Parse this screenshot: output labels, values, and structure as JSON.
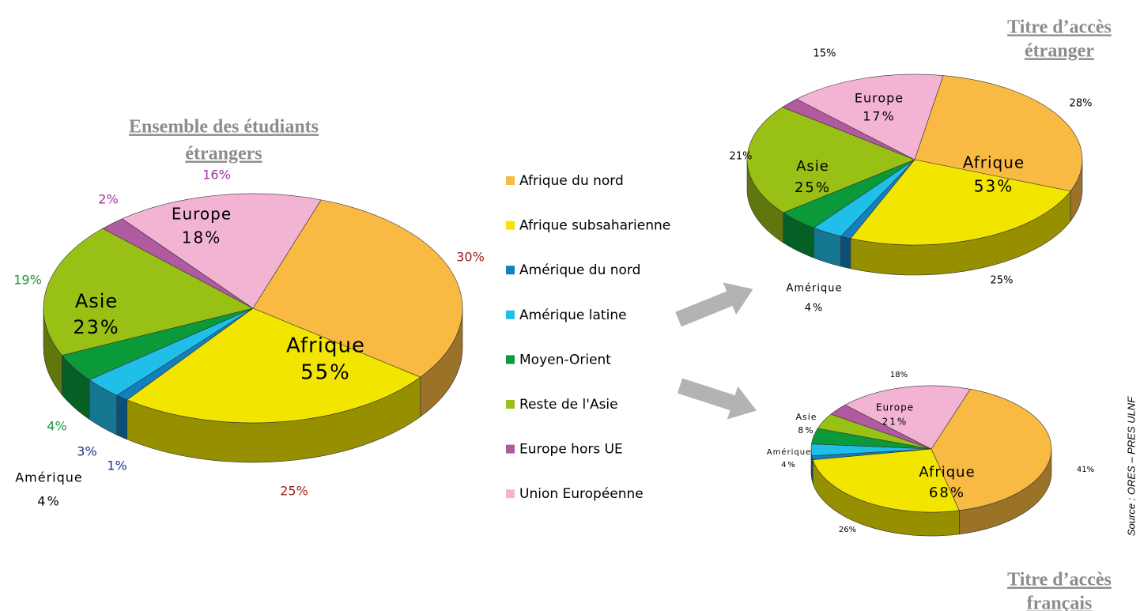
{
  "legend": {
    "categories": [
      "Afrique du nord",
      "Afrique subsaharienne",
      "Amérique du nord",
      "Amérique latine",
      "Moyen-Orient",
      "Reste de l'Asie",
      "Europe hors UE",
      "Union Européenne"
    ],
    "colors": [
      "#f8ba42",
      "#f2e600",
      "#1080c0",
      "#20bfea",
      "#0a9a3a",
      "#99c014",
      "#b05aa0",
      "#f3b3d3"
    ]
  },
  "source": "Source : ORES – PRES ULNF",
  "chart_data": [
    {
      "type": "pie",
      "title": [
        "Ensemble des  étudiants",
        "étrangers"
      ],
      "values": [
        30,
        25,
        1,
        3,
        4,
        19,
        2,
        16
      ],
      "value_labels": [
        "30%",
        "25%",
        "1%",
        "3%",
        "4%",
        "19%",
        "2%",
        "16%"
      ],
      "label_colors": [
        "#9b1c1c",
        "#9b1c1c",
        "#1f2f8a",
        "#1f2f8a",
        "#139a3a",
        "#139a3a",
        "#a0379a",
        "#a0379a"
      ],
      "groups": {
        "names": [
          "Afrique",
          "Asie",
          "Europe",
          "Amérique"
        ],
        "values": [
          55,
          23,
          18,
          4
        ],
        "value_labels": [
          "55%",
          "23%",
          "18%",
          "4%"
        ]
      }
    },
    {
      "type": "pie",
      "title": [
        "Titre d’accès",
        "étranger"
      ],
      "values": [
        28,
        25,
        1,
        3,
        4,
        21,
        2,
        15
      ],
      "value_labels": [
        "28%",
        "25%",
        null,
        null,
        null,
        "21%",
        null,
        "15%"
      ],
      "groups": {
        "names": [
          "Afrique",
          "Asie",
          "Europe",
          "Amérique"
        ],
        "values": [
          53,
          25,
          17,
          4
        ],
        "value_labels": [
          "53%",
          "25%",
          "17%",
          "4%"
        ]
      }
    },
    {
      "type": "pie",
      "title": [
        "Titre d’accès",
        "français"
      ],
      "values": [
        41,
        26,
        1,
        3,
        4,
        4,
        3,
        18
      ],
      "value_labels": [
        "41%",
        "26%",
        null,
        null,
        null,
        null,
        null,
        "18%"
      ],
      "groups": {
        "names": [
          "Afrique",
          "Asie",
          "Europe",
          "Amérique"
        ],
        "values": [
          68,
          8,
          21,
          4
        ],
        "value_labels": [
          "68%",
          "8%",
          "21%",
          "4%"
        ]
      }
    }
  ]
}
